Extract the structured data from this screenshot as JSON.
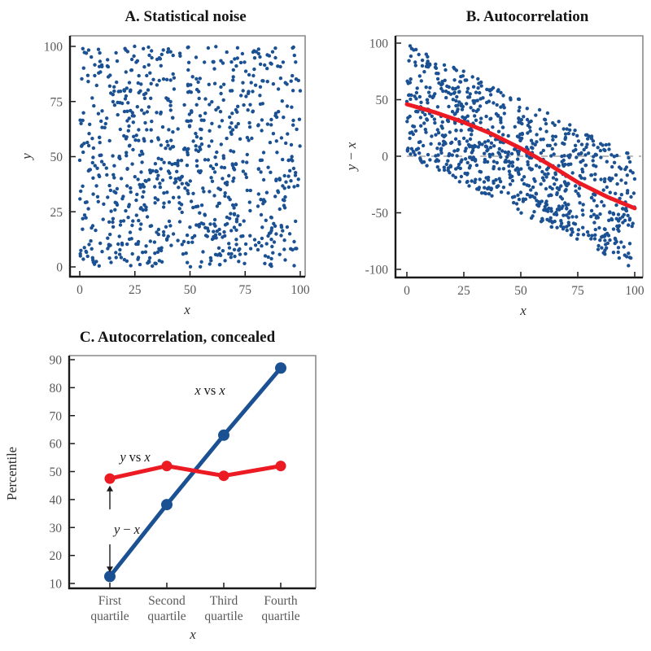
{
  "figure": {
    "background": "#ffffff",
    "colors": {
      "point_blue": "#1b5192",
      "line_red": "#ec1b23",
      "axis_black": "#1a1a1a",
      "frame_gray": "#8a8a8a",
      "tick_text_gray": "#595959",
      "dashed_gray": "#bbbbbb"
    }
  },
  "chart_data": [
    {
      "id": "A",
      "type": "scatter",
      "title": "A. Statistical noise",
      "xlabel": "x",
      "ylabel": "y",
      "xlim": [
        0,
        100
      ],
      "ylim": [
        0,
        100
      ],
      "xticks": [
        0,
        25,
        50,
        75,
        100
      ],
      "yticks": [
        0,
        25,
        50,
        75,
        100
      ],
      "grid": false,
      "points": {
        "n": 900,
        "distribution": "uniform random",
        "x_range": [
          0,
          100
        ],
        "y_range": [
          0,
          100
        ],
        "seed": 1337,
        "color": "#1b5192",
        "radius": 2.2
      }
    },
    {
      "id": "B",
      "type": "scatter",
      "title": "B. Autocorrelation",
      "xlabel": "x",
      "ylabel": "y − x",
      "ylabel_parts": {
        "i1": "y",
        "mid": "−",
        "i2": "x"
      },
      "xlim": [
        0,
        100
      ],
      "ylim": [
        -100,
        100
      ],
      "xticks": [
        0,
        25,
        50,
        75,
        100
      ],
      "yticks": [
        100,
        50,
        0,
        -50,
        -100
      ],
      "grid": false,
      "points": {
        "n": 900,
        "derived_from": "same uniform points as panel A plotted as (x, y − x)",
        "seed": 1337,
        "color": "#1b5192",
        "radius": 2.2
      },
      "zero_line": {
        "value": 0,
        "style": "dashed",
        "color": "#bbbbbb"
      },
      "trend_line": {
        "color": "#ec1b23",
        "width": 5,
        "points": [
          [
            0,
            46
          ],
          [
            12,
            39
          ],
          [
            25,
            30
          ],
          [
            37,
            20
          ],
          [
            50,
            7
          ],
          [
            63,
            -8
          ],
          [
            75,
            -23
          ],
          [
            88,
            -36
          ],
          [
            100,
            -46
          ]
        ]
      }
    },
    {
      "id": "C",
      "type": "line",
      "title": "C. Autocorrelation, concealed",
      "xlabel": "x",
      "ylabel": "Percentile",
      "categories": [
        "First quartile",
        "Second quartile",
        "Third quartile",
        "Fourth quartile"
      ],
      "ylim": [
        10,
        90
      ],
      "yticks": [
        10,
        20,
        30,
        40,
        50,
        60,
        70,
        80,
        90
      ],
      "grid": false,
      "series": [
        {
          "name": "x vs x",
          "color": "#1b5192",
          "values": [
            12.5,
            38.2,
            63,
            87
          ],
          "marker_radius": 7,
          "line_width": 5
        },
        {
          "name": "y vs x",
          "color": "#ec1b23",
          "values": [
            47.5,
            52,
            48.5,
            52
          ],
          "marker_radius": 6.5,
          "line_width": 5
        }
      ],
      "series_labels": {
        "blue": {
          "i1": "x",
          "mid": "vs",
          "i2": "x"
        },
        "red": {
          "i1": "y",
          "mid": "vs",
          "i2": "x"
        }
      },
      "annotation": {
        "label": "y − x",
        "label_parts": {
          "i1": "y",
          "mid": "−",
          "i2": "x"
        },
        "category_index": 0,
        "arrow_top_value": 45,
        "arrow_bottom_value": 14,
        "gap_values": [
          36.5,
          24
        ],
        "meaning": "double-headed arrow between the two curves at the first quartile"
      }
    }
  ]
}
